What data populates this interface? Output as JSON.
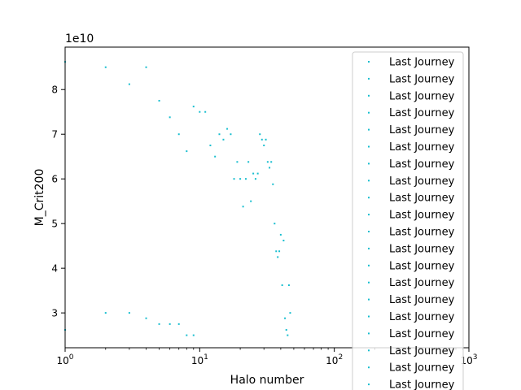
{
  "chart_data": {
    "type": "scatter",
    "title": "",
    "xlabel": "Halo number",
    "ylabel": "M_Crit200",
    "x_scale": "log",
    "xlim": [
      1,
      1000
    ],
    "ylim": [
      22200000000.0,
      89500000000.0
    ],
    "y_offset_label": "1e10",
    "x_ticks": [
      {
        "value": 1,
        "base": "10",
        "exp": "0"
      },
      {
        "value": 10,
        "base": "10",
        "exp": "1"
      },
      {
        "value": 100,
        "base": "10",
        "exp": "2"
      },
      {
        "value": 1000,
        "base": "10",
        "exp": "3"
      }
    ],
    "y_ticks": [
      {
        "value": 30000000000.0,
        "label": "3"
      },
      {
        "value": 40000000000.0,
        "label": "4"
      },
      {
        "value": 50000000000.0,
        "label": "5"
      },
      {
        "value": 60000000000.0,
        "label": "6"
      },
      {
        "value": 70000000000.0,
        "label": "7"
      },
      {
        "value": 80000000000.0,
        "label": "8"
      }
    ],
    "marker_color": "#17becf",
    "grid": false,
    "legend_position": "upper right",
    "legend_entries": [
      "Last Journey",
      "Last Journey",
      "Last Journey",
      "Last Journey",
      "Last Journey",
      "Last Journey",
      "Last Journey",
      "Last Journey",
      "Last Journey",
      "Last Journey",
      "Last Journey",
      "Last Journey",
      "Last Journey",
      "Last Journey",
      "Last Journey",
      "Last Journey",
      "Last Journey",
      "Last Journey",
      "Last Journey",
      "Last Journey"
    ],
    "points": [
      {
        "x": 1,
        "y": 86200000000.0
      },
      {
        "x": 2,
        "y": 85000000000.0
      },
      {
        "x": 3,
        "y": 81200000000.0
      },
      {
        "x": 4,
        "y": 85000000000.0
      },
      {
        "x": 5,
        "y": 77500000000.0
      },
      {
        "x": 6,
        "y": 73800000000.0
      },
      {
        "x": 7,
        "y": 70000000000.0
      },
      {
        "x": 8,
        "y": 66200000000.0
      },
      {
        "x": 9,
        "y": 76200000000.0
      },
      {
        "x": 10,
        "y": 75000000000.0
      },
      {
        "x": 11,
        "y": 75000000000.0
      },
      {
        "x": 12,
        "y": 67500000000.0
      },
      {
        "x": 13,
        "y": 65000000000.0
      },
      {
        "x": 14,
        "y": 70000000000.0
      },
      {
        "x": 15,
        "y": 68800000000.0
      },
      {
        "x": 16,
        "y": 71200000000.0
      },
      {
        "x": 17,
        "y": 70000000000.0
      },
      {
        "x": 18,
        "y": 60000000000.0
      },
      {
        "x": 19,
        "y": 63800000000.0
      },
      {
        "x": 20,
        "y": 60000000000.0
      },
      {
        "x": 21,
        "y": 53800000000.0
      },
      {
        "x": 22,
        "y": 60000000000.0
      },
      {
        "x": 23,
        "y": 63800000000.0
      },
      {
        "x": 24,
        "y": 55000000000.0
      },
      {
        "x": 25,
        "y": 61200000000.0
      },
      {
        "x": 26,
        "y": 60000000000.0
      },
      {
        "x": 27,
        "y": 61200000000.0
      },
      {
        "x": 28,
        "y": 70000000000.0
      },
      {
        "x": 29,
        "y": 68800000000.0
      },
      {
        "x": 30,
        "y": 67500000000.0
      },
      {
        "x": 31,
        "y": 68800000000.0
      },
      {
        "x": 32,
        "y": 63800000000.0
      },
      {
        "x": 33,
        "y": 62500000000.0
      },
      {
        "x": 34,
        "y": 63800000000.0
      },
      {
        "x": 35,
        "y": 58800000000.0
      },
      {
        "x": 36,
        "y": 50000000000.0
      },
      {
        "x": 37,
        "y": 43800000000.0
      },
      {
        "x": 38,
        "y": 42500000000.0
      },
      {
        "x": 39,
        "y": 43800000000.0
      },
      {
        "x": 40,
        "y": 47500000000.0
      },
      {
        "x": 41,
        "y": 36200000000.0
      },
      {
        "x": 42,
        "y": 46200000000.0
      },
      {
        "x": 43,
        "y": 28800000000.0
      },
      {
        "x": 44,
        "y": 26200000000.0
      },
      {
        "x": 45,
        "y": 25000000000.0
      },
      {
        "x": 46,
        "y": 36200000000.0
      },
      {
        "x": 47,
        "y": 30000000000.0
      },
      {
        "x": 1,
        "y": 26200000000.0
      },
      {
        "x": 2,
        "y": 30000000000.0
      },
      {
        "x": 3,
        "y": 30000000000.0
      },
      {
        "x": 4,
        "y": 28800000000.0
      },
      {
        "x": 5,
        "y": 27500000000.0
      },
      {
        "x": 6,
        "y": 27500000000.0
      },
      {
        "x": 7,
        "y": 27500000000.0
      },
      {
        "x": 8,
        "y": 25000000000.0
      },
      {
        "x": 9,
        "y": 25000000000.0
      }
    ]
  }
}
